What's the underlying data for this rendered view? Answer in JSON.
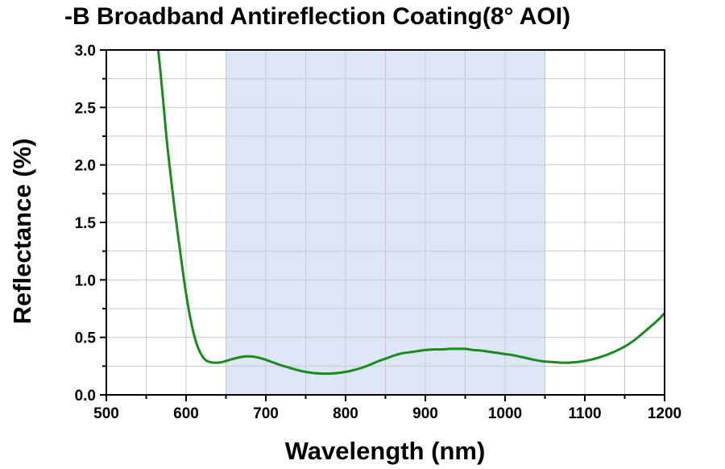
{
  "chart_data": {
    "type": "line",
    "title": "-B Broadband Antireflection Coating(8° AOI)",
    "xlabel": "Wavelength (nm)",
    "ylabel": "Reflectance (%)",
    "xlim": [
      500,
      1200
    ],
    "ylim": [
      0,
      3.0
    ],
    "x_ticks": [
      500,
      600,
      700,
      800,
      900,
      1000,
      1100,
      1200
    ],
    "y_ticks": [
      0.0,
      0.5,
      1.0,
      1.5,
      2.0,
      2.5,
      3.0
    ],
    "x_tick_labels": [
      "500",
      "600",
      "700",
      "800",
      "900",
      "1000",
      "1100",
      "1200"
    ],
    "y_tick_labels": [
      "0.0",
      "0.5",
      "1.0",
      "1.5",
      "2.0",
      "2.5",
      "3.0"
    ],
    "grid": true,
    "highlight_band": {
      "x_start": 650,
      "x_end": 1050,
      "color": "#dce6f7"
    },
    "series": [
      {
        "color": "#1a8a1a",
        "x": [
          565,
          568,
          572,
          576,
          580,
          585,
          590,
          595,
          600,
          605,
          610,
          615,
          620,
          625,
          630,
          635,
          640,
          645,
          650,
          660,
          670,
          680,
          690,
          700,
          710,
          720,
          730,
          740,
          750,
          760,
          770,
          780,
          790,
          800,
          810,
          820,
          830,
          840,
          850,
          860,
          870,
          880,
          890,
          900,
          910,
          920,
          930,
          940,
          950,
          960,
          970,
          980,
          990,
          1000,
          1010,
          1020,
          1030,
          1040,
          1050,
          1060,
          1070,
          1080,
          1090,
          1100,
          1110,
          1120,
          1130,
          1140,
          1150,
          1160,
          1170,
          1180,
          1190,
          1200
        ],
        "y": [
          3.0,
          2.8,
          2.5,
          2.2,
          1.95,
          1.65,
          1.38,
          1.12,
          0.88,
          0.68,
          0.52,
          0.41,
          0.34,
          0.3,
          0.285,
          0.28,
          0.28,
          0.285,
          0.295,
          0.315,
          0.33,
          0.335,
          0.325,
          0.305,
          0.28,
          0.255,
          0.235,
          0.215,
          0.2,
          0.19,
          0.185,
          0.185,
          0.19,
          0.2,
          0.215,
          0.235,
          0.26,
          0.29,
          0.315,
          0.34,
          0.36,
          0.37,
          0.38,
          0.39,
          0.395,
          0.395,
          0.4,
          0.4,
          0.4,
          0.39,
          0.385,
          0.375,
          0.365,
          0.355,
          0.345,
          0.33,
          0.315,
          0.3,
          0.29,
          0.285,
          0.28,
          0.28,
          0.285,
          0.295,
          0.31,
          0.33,
          0.355,
          0.385,
          0.42,
          0.465,
          0.52,
          0.58,
          0.64,
          0.71
        ]
      }
    ]
  }
}
